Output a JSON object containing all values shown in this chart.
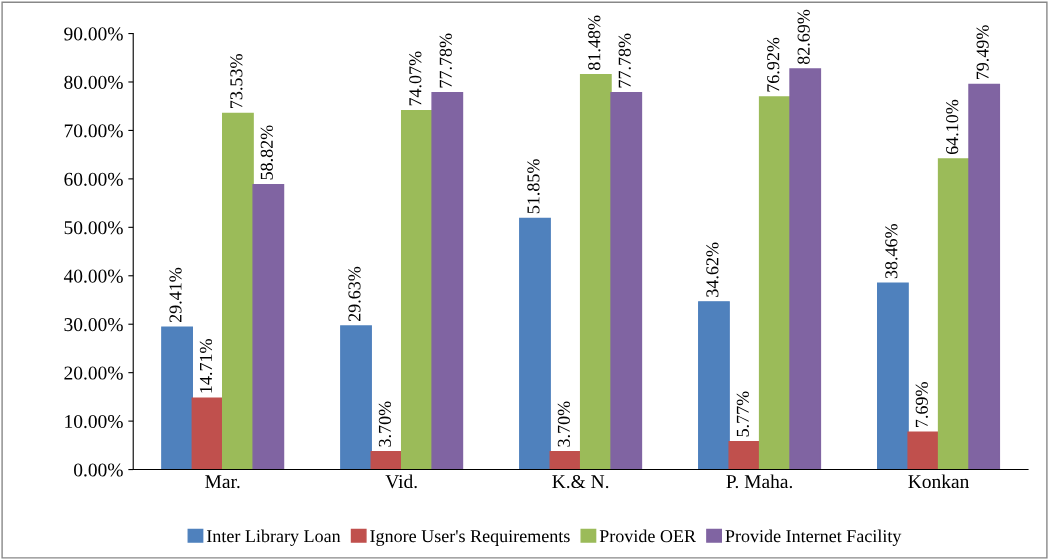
{
  "chart_data": {
    "type": "bar",
    "categories": [
      "Mar.",
      "Vid.",
      "K.& N.",
      "P. Maha.",
      "Konkan"
    ],
    "series": [
      {
        "name": "Inter Library Loan",
        "color": "#4f81bd",
        "values": [
          29.41,
          29.63,
          51.85,
          34.62,
          38.46
        ],
        "value_labels": [
          "29.41%",
          "29.63%",
          "51.85%",
          "34.62%",
          "38.46%"
        ]
      },
      {
        "name": "Ignore User's Requirements",
        "color": "#c0504d",
        "values": [
          14.71,
          3.7,
          3.7,
          5.77,
          7.69
        ],
        "value_labels": [
          "14.71%",
          "3.70%",
          "3.70%",
          "5.77%",
          "7.69%"
        ]
      },
      {
        "name": "Provide OER",
        "color": "#9bbb59",
        "values": [
          73.53,
          74.07,
          81.48,
          76.92,
          64.1
        ],
        "value_labels": [
          "73.53%",
          "74.07%",
          "81.48%",
          "76.92%",
          "64.10%"
        ]
      },
      {
        "name": "Provide Internet Facility",
        "color": "#8064a2",
        "values": [
          58.82,
          77.78,
          77.78,
          82.69,
          79.49
        ],
        "value_labels": [
          "58.82%",
          "77.78%",
          "77.78%",
          "82.69%",
          "79.49%"
        ]
      }
    ],
    "ylim": [
      0,
      90
    ],
    "yticks": [
      {
        "value": 0,
        "label": "0.00%"
      },
      {
        "value": 10,
        "label": "10.00%"
      },
      {
        "value": 20,
        "label": "20.00%"
      },
      {
        "value": 30,
        "label": "30.00%"
      },
      {
        "value": 40,
        "label": "40.00%"
      },
      {
        "value": 50,
        "label": "50.00%"
      },
      {
        "value": 60,
        "label": "60.00%"
      },
      {
        "value": 70,
        "label": "70.00%"
      },
      {
        "value": 80,
        "label": "80.00%"
      },
      {
        "value": 90,
        "label": "90.00%"
      }
    ],
    "grid": false,
    "legend": "bottom"
  }
}
